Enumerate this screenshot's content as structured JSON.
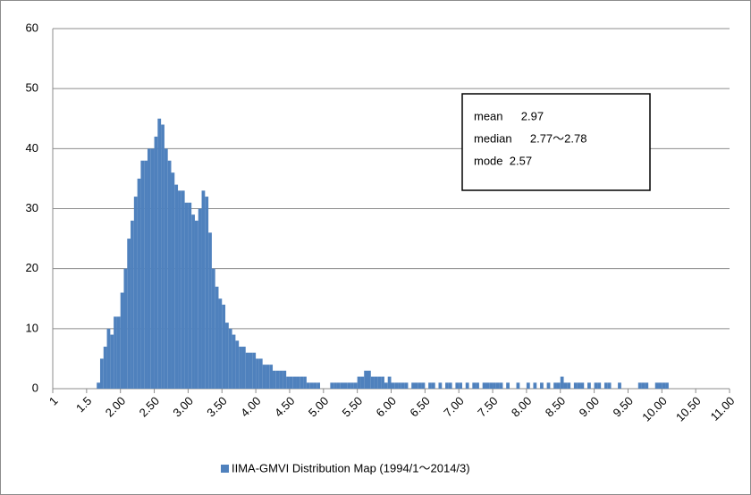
{
  "chart_data": {
    "type": "histogram",
    "series": [
      {
        "name": "IIMA-GMVI Distribution Map (1994/1～2014/3)",
        "color": "#4f81bd",
        "values": [
          0,
          1,
          5,
          7,
          10,
          9,
          12,
          12,
          16,
          20,
          25,
          28,
          32,
          35,
          38,
          38,
          40,
          40,
          42,
          45,
          44,
          40,
          38,
          36,
          34,
          33,
          33,
          31,
          31,
          29,
          28,
          30,
          33,
          32,
          26,
          20,
          17,
          15,
          14,
          11,
          10,
          9,
          8,
          7,
          7,
          6,
          6,
          6,
          5,
          5,
          4,
          4,
          4,
          3,
          3,
          3,
          3,
          2,
          2,
          2,
          2,
          2,
          2,
          1,
          1,
          1,
          1,
          0,
          0,
          0,
          1,
          1,
          1,
          1,
          1,
          1,
          1,
          1,
          2,
          2,
          3,
          3,
          2,
          2,
          2,
          2,
          1,
          2,
          1,
          1,
          1,
          1,
          1,
          0,
          1,
          1,
          1,
          1,
          0,
          1,
          1,
          0,
          1,
          0,
          1,
          1,
          0,
          1,
          1,
          0,
          1,
          0,
          1,
          1,
          0,
          1,
          1,
          1,
          1,
          1,
          1,
          0,
          1,
          0,
          0,
          1,
          0,
          0,
          1,
          0,
          1,
          0,
          1,
          0,
          1,
          0,
          1,
          1,
          2,
          1,
          1,
          0,
          1,
          1,
          1,
          0,
          1,
          0,
          1,
          1,
          0,
          1,
          1,
          0,
          0,
          1,
          0,
          0,
          0,
          0,
          0,
          1,
          1,
          1,
          0,
          0,
          1,
          1,
          1,
          1
        ]
      }
    ],
    "bins": [
      1.6,
      1.65,
      1.7,
      1.75,
      1.8,
      1.85,
      1.9,
      1.95,
      2,
      2.05,
      2.1,
      2.15,
      2.2,
      2.25,
      2.3,
      2.35,
      2.4,
      2.45,
      2.5,
      2.55,
      2.6,
      2.65,
      2.7,
      2.75,
      2.8,
      2.85,
      2.9,
      2.95,
      3,
      3.05,
      3.1,
      3.15,
      3.2,
      3.25,
      3.3,
      3.35,
      3.4,
      3.45,
      3.5,
      3.55,
      3.6,
      3.65,
      3.7,
      3.75,
      3.8,
      3.85,
      3.9,
      3.95,
      4,
      4.05,
      4.1,
      4.15,
      4.2,
      4.25,
      4.3,
      4.35,
      4.4,
      4.45,
      4.5,
      4.55,
      4.6,
      4.65,
      4.7,
      4.75,
      4.8,
      4.85,
      4.9,
      4.95,
      5,
      5.05,
      5.1,
      5.15,
      5.2,
      5.25,
      5.3,
      5.35,
      5.4,
      5.45,
      5.5,
      5.55,
      5.6,
      5.65,
      5.7,
      5.75,
      5.8,
      5.85,
      5.9,
      5.95,
      6,
      6.05,
      6.1,
      6.15,
      6.2,
      6.25,
      6.3,
      6.35,
      6.4,
      6.45,
      6.5,
      6.55,
      6.6,
      6.65,
      6.7,
      6.75,
      6.8,
      6.85,
      6.9,
      6.95,
      7,
      7.05,
      7.1,
      7.15,
      7.2,
      7.25,
      7.3,
      7.35,
      7.4,
      7.45,
      7.5,
      7.55,
      7.6,
      7.65,
      7.7,
      7.75,
      7.8,
      7.85,
      7.9,
      7.95,
      8,
      8.05,
      8.1,
      8.15,
      8.2,
      8.25,
      8.3,
      8.35,
      8.4,
      8.45,
      8.5,
      8.55,
      8.6,
      8.65,
      8.7,
      8.75,
      8.8,
      8.85,
      8.9,
      8.95,
      9,
      9.05,
      9.1,
      9.15,
      9.2,
      9.25,
      9.3,
      9.35,
      9.4,
      9.45,
      9.5,
      9.55,
      9.6,
      9.65,
      9.7,
      9.75,
      9.8,
      9.85,
      9.9,
      9.95,
      10,
      10.05,
      10.1
    ],
    "xlim": [
      1,
      11
    ],
    "xticks": [
      1,
      1.5,
      {
        "value": 2,
        "label": "2.00"
      },
      {
        "value": 2.5,
        "label": "2.50"
      },
      {
        "value": 3,
        "label": "3.00"
      },
      {
        "value": 3.5,
        "label": "3.50"
      },
      {
        "value": 4,
        "label": "4.00"
      },
      {
        "value": 4.5,
        "label": "4.50"
      },
      {
        "value": 5,
        "label": "5.00"
      },
      {
        "value": 5.5,
        "label": "5.50"
      },
      {
        "value": 6,
        "label": "6.00"
      },
      {
        "value": 6.5,
        "label": "6.50"
      },
      {
        "value": 7,
        "label": "7.00"
      },
      {
        "value": 7.5,
        "label": "7.50"
      },
      {
        "value": 8,
        "label": "8.00"
      },
      {
        "value": 8.5,
        "label": "8.50"
      },
      {
        "value": 9,
        "label": "9.00"
      },
      {
        "value": 9.5,
        "label": "9.50"
      },
      {
        "value": 10,
        "label": "10.00"
      },
      {
        "value": 10.5,
        "label": "10.50"
      },
      {
        "value": 11,
        "label": "11.00"
      }
    ],
    "ylim": [
      0,
      60
    ],
    "yticks": [
      0,
      10,
      20,
      30,
      40,
      50,
      60
    ],
    "grid": true,
    "annotations": [
      "mean 　 2.97",
      "median 　 2.77～2.78",
      "mode  2.57"
    ],
    "legend": "bottom"
  }
}
